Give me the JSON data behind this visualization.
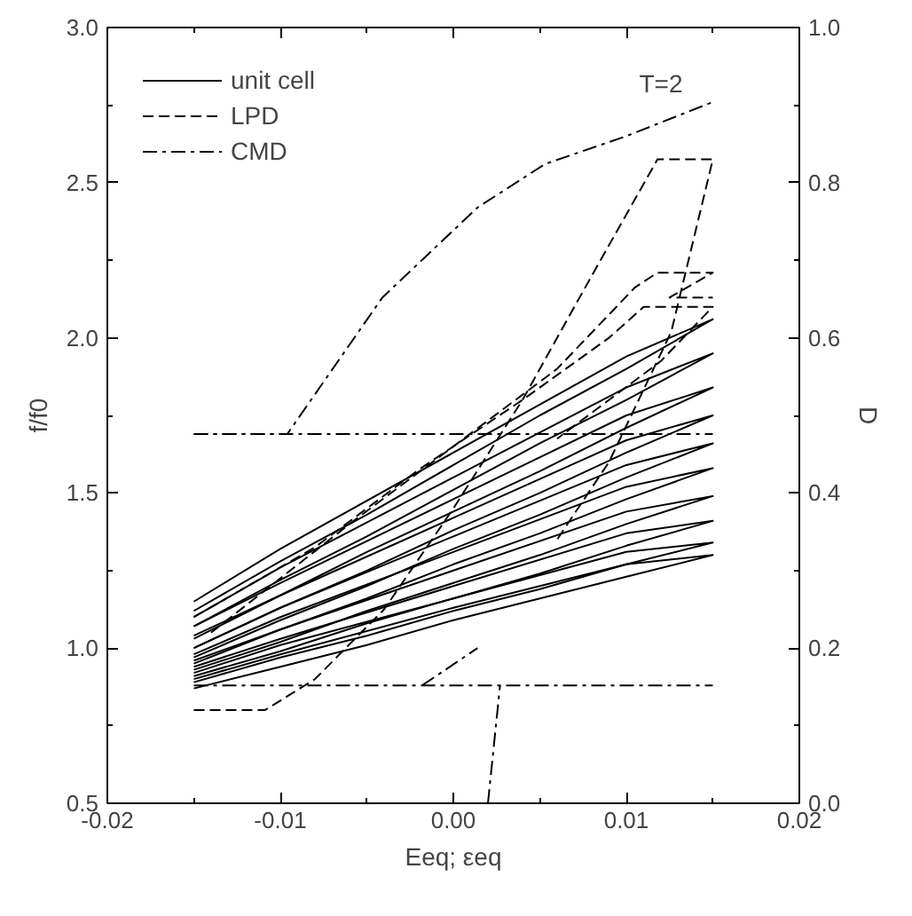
{
  "chart_data": {
    "type": "line",
    "xlabel": "Eeq; εeq",
    "ylabel": "f/f0",
    "y2label": "D",
    "xlim": [
      -0.02,
      0.02
    ],
    "xticks": [
      -0.02,
      {
        "value": -0.015,
        "label": null
      },
      -0.01,
      {
        "value": -0.005,
        "label": null
      },
      {
        "value": 0,
        "label": "0.00"
      },
      {
        "value": 0.005,
        "label": null
      },
      0.01,
      {
        "value": 0.015,
        "label": null
      },
      0.02
    ],
    "ylim": [
      0.5,
      3.0
    ],
    "yticks": [
      0.5,
      {
        "value": 0.75,
        "label": null
      },
      {
        "value": 1.0,
        "label": "1.0"
      },
      {
        "value": 1.25,
        "label": null
      },
      1.5,
      {
        "value": 1.75,
        "label": null
      },
      {
        "value": 2.0,
        "label": "2.0"
      },
      {
        "value": 2.25,
        "label": null
      },
      2.5,
      {
        "value": 2.75,
        "label": null
      },
      {
        "value": 3.0,
        "label": "3.0"
      }
    ],
    "y2lim": [
      0.0,
      1.0
    ],
    "y2ticks": [
      {
        "value": 0.0,
        "label": "0.0"
      },
      {
        "value": 0.1,
        "label": null
      },
      0.2,
      {
        "value": 0.3,
        "label": null
      },
      0.4,
      {
        "value": 0.5,
        "label": null
      },
      0.6,
      {
        "value": 0.7,
        "label": null
      },
      0.8,
      {
        "value": 0.9,
        "label": null
      },
      {
        "value": 1.0,
        "label": "1.0"
      }
    ],
    "grid": false,
    "legend": "top left",
    "annotations": [
      "T=2"
    ],
    "x": [
      -0.015,
      -0.01,
      -0.005,
      0,
      0.005,
      0.01,
      0.015,
      0.01,
      0,
      -0.01,
      -0.015
    ],
    "series": [
      {
        "name": "unit cell",
        "color": "#000000",
        "line_style": "solid",
        "values": [
          1.12,
          1.28,
          1.43,
          1.59,
          1.75,
          1.9,
          2.06,
          1.94,
          1.63,
          1.32,
          1.15
        ]
      },
      {
        "color": "#000000",
        "line_style": "solid",
        "values": [
          1.07,
          1.22,
          1.36,
          1.51,
          1.66,
          1.8,
          1.95,
          1.84,
          1.55,
          1.26,
          1.1
        ]
      },
      {
        "color": "#000000",
        "line_style": "solid",
        "values": [
          1.04,
          1.17,
          1.31,
          1.44,
          1.57,
          1.71,
          1.84,
          1.75,
          1.48,
          1.21,
          1.07
        ]
      },
      {
        "color": "#000000",
        "line_style": "solid",
        "values": [
          1.0,
          1.13,
          1.25,
          1.38,
          1.5,
          1.63,
          1.75,
          1.67,
          1.42,
          1.17,
          1.03
        ]
      },
      {
        "color": "#000000",
        "line_style": "solid",
        "values": [
          0.97,
          1.09,
          1.2,
          1.32,
          1.43,
          1.55,
          1.66,
          1.59,
          1.36,
          1.13,
          1.0
        ]
      },
      {
        "color": "#000000",
        "line_style": "solid",
        "values": [
          0.95,
          1.06,
          1.16,
          1.27,
          1.37,
          1.48,
          1.58,
          1.52,
          1.31,
          1.1,
          0.98
        ]
      },
      {
        "color": "#000000",
        "line_style": "solid",
        "values": [
          0.93,
          1.02,
          1.12,
          1.21,
          1.3,
          1.4,
          1.49,
          1.44,
          1.25,
          1.06,
          0.96
        ]
      },
      {
        "color": "#000000",
        "line_style": "solid",
        "values": [
          0.91,
          0.99,
          1.08,
          1.16,
          1.24,
          1.33,
          1.41,
          1.37,
          1.2,
          1.03,
          0.94
        ]
      },
      {
        "color": "#000000",
        "line_style": "solid",
        "values": [
          0.89,
          0.97,
          1.04,
          1.12,
          1.19,
          1.27,
          1.34,
          1.31,
          1.16,
          1.01,
          0.92
        ]
      },
      {
        "color": "#000000",
        "line_style": "solid",
        "values": [
          0.87,
          0.94,
          1.01,
          1.09,
          1.16,
          1.23,
          1.3,
          1.27,
          1.13,
          0.98,
          0.9
        ]
      },
      {
        "name": "LPD",
        "color": "#000000",
        "line_style": "dashed",
        "axis": "y2",
        "x": [
          -0.015,
          -0.0109,
          -0.008,
          -0.004,
          0.0,
          0.004,
          0.008,
          0.0118,
          0.015,
          0.0126,
          0.009,
          0.006
        ],
        "values": [
          0.12,
          0.12,
          0.16,
          0.25,
          0.38,
          0.52,
          0.68,
          0.83,
          0.83,
          0.608,
          0.44,
          0.34
        ]
      },
      {
        "color": "#000000",
        "line_style": "dashed",
        "axis": "y2",
        "x": [
          -0.014,
          -0.006,
          0.0,
          0.006,
          0.0105,
          0.0118,
          0.015,
          0.0125,
          0.015
        ],
        "values": [
          0.22,
          0.36,
          0.46,
          0.56,
          0.665,
          0.684,
          0.684,
          0.652,
          0.652
        ]
      },
      {
        "color": "#000000",
        "line_style": "dashed",
        "axis": "y2",
        "x": [
          -0.015,
          -0.008,
          -0.002,
          0.004,
          0.009,
          0.011,
          0.015,
          0.012,
          0.006
        ],
        "values": [
          0.24,
          0.33,
          0.43,
          0.52,
          0.6,
          0.64,
          0.64,
          0.57,
          0.47
        ]
      },
      {
        "name": "CMD",
        "color": "#000000",
        "line_style": "dashdot",
        "axis": "y2",
        "x": [
          -0.015,
          -0.0096,
          -0.0041,
          0.0014,
          0.0053,
          0.01,
          0.015
        ],
        "values": [
          0.476,
          0.476,
          0.652,
          0.768,
          0.824,
          0.86,
          0.904
        ]
      },
      {
        "color": "#000000",
        "line_style": "dashdot",
        "axis": "y2",
        "x": [
          -0.015,
          0.015
        ],
        "values": [
          0.476,
          0.476
        ]
      },
      {
        "color": "#000000",
        "line_style": "dashdot",
        "axis": "y2",
        "x": [
          -0.015,
          0.015
        ],
        "values": [
          0.152,
          0.152
        ]
      },
      {
        "color": "#000000",
        "line_style": "dashdot",
        "axis": "y2",
        "x": [
          0.002,
          0.0027
        ],
        "values": [
          0.0,
          0.152
        ]
      },
      {
        "color": "#000000",
        "line_style": "dashdot",
        "axis": "y2",
        "x": [
          -0.0018,
          0.0014
        ],
        "values": [
          0.152,
          0.2
        ]
      }
    ]
  }
}
